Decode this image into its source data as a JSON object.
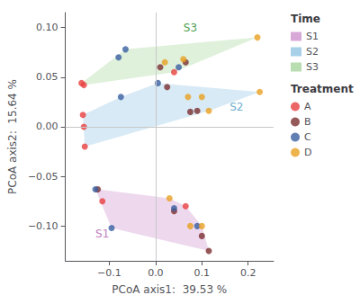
{
  "chart_data": {
    "type": "scatter",
    "title": "",
    "xlabel": "PCoA axis1:  39.53 %",
    "ylabel": "PCoA axis2:  15.64 %",
    "xlim": [
      -0.195,
      0.255
    ],
    "ylim": [
      -0.135,
      0.115
    ],
    "xticks": [
      {
        "value": -0.1,
        "label": "−0.1"
      },
      {
        "value": 0.0,
        "label": "0.0"
      },
      {
        "value": 0.1,
        "label": "0.1"
      },
      {
        "value": 0.2,
        "label": "0.2"
      }
    ],
    "yticks": [
      {
        "value": -0.1,
        "label": "−0.10"
      },
      {
        "value": -0.05,
        "label": "−0.05"
      },
      {
        "value": 0.0,
        "label": "0.00"
      },
      {
        "value": 0.05,
        "label": "0.05"
      },
      {
        "value": 0.1,
        "label": "0.10"
      }
    ],
    "grid": false,
    "legend": "right",
    "time_title": "Time",
    "treatment_title": "Treatment",
    "times": [
      {
        "name": "S1",
        "color": "#D8A8D8"
      },
      {
        "name": "S2",
        "color": "#A8D0E8"
      },
      {
        "name": "S3",
        "color": "#B8DDB0"
      }
    ],
    "treatments": [
      {
        "name": "A",
        "color": "#E84040"
      },
      {
        "name": "B",
        "color": "#7B3030"
      },
      {
        "name": "C",
        "color": "#3A5FA0"
      },
      {
        "name": "D",
        "color": "#E8A020"
      }
    ],
    "reference_lines": [
      {
        "axis": "x",
        "value": 0
      },
      {
        "axis": "y",
        "value": 0
      }
    ],
    "annotations": [
      {
        "text": "S1",
        "x": -0.115,
        "y": -0.108,
        "color": "#C080C0"
      },
      {
        "text": "S2",
        "x": 0.175,
        "y": 0.02,
        "color": "#70B0D0"
      },
      {
        "text": "S3",
        "x": 0.075,
        "y": 0.1,
        "color": "#50A050"
      }
    ],
    "points": [
      {
        "x": -0.16,
        "y": 0.044,
        "treatment": "A",
        "time": "S3"
      },
      {
        "x": -0.155,
        "y": 0.042,
        "treatment": "A",
        "time": "S3"
      },
      {
        "x": -0.157,
        "y": 0.012,
        "treatment": "A",
        "time": "S2"
      },
      {
        "x": -0.155,
        "y": 0.0,
        "treatment": "A",
        "time": "S2"
      },
      {
        "x": -0.153,
        "y": -0.02,
        "treatment": "A",
        "time": "S2"
      },
      {
        "x": -0.08,
        "y": 0.07,
        "treatment": "C",
        "time": "S3"
      },
      {
        "x": -0.065,
        "y": 0.078,
        "treatment": "C",
        "time": "S3"
      },
      {
        "x": -0.075,
        "y": 0.03,
        "treatment": "C",
        "time": "S2"
      },
      {
        "x": 0.005,
        "y": 0.044,
        "treatment": "C",
        "time": "S2"
      },
      {
        "x": 0.01,
        "y": 0.06,
        "treatment": "B",
        "time": "S3"
      },
      {
        "x": 0.02,
        "y": 0.065,
        "treatment": "D",
        "time": "S3"
      },
      {
        "x": 0.025,
        "y": 0.04,
        "treatment": "B",
        "time": "S2"
      },
      {
        "x": 0.04,
        "y": 0.055,
        "treatment": "A",
        "time": "S3"
      },
      {
        "x": 0.05,
        "y": 0.06,
        "treatment": "C",
        "time": "S3"
      },
      {
        "x": 0.06,
        "y": 0.068,
        "treatment": "D",
        "time": "S3"
      },
      {
        "x": 0.065,
        "y": 0.065,
        "treatment": "B",
        "time": "S3"
      },
      {
        "x": 0.07,
        "y": 0.03,
        "treatment": "D",
        "time": "S2"
      },
      {
        "x": 0.075,
        "y": 0.015,
        "treatment": "B",
        "time": "S2"
      },
      {
        "x": 0.09,
        "y": 0.016,
        "treatment": "B",
        "time": "S2"
      },
      {
        "x": 0.1,
        "y": 0.03,
        "treatment": "D",
        "time": "S2"
      },
      {
        "x": 0.115,
        "y": 0.016,
        "treatment": "D",
        "time": "S2"
      },
      {
        "x": 0.22,
        "y": 0.09,
        "treatment": "D",
        "time": "S3"
      },
      {
        "x": 0.225,
        "y": 0.035,
        "treatment": "D",
        "time": "S2"
      },
      {
        "x": -0.13,
        "y": -0.063,
        "treatment": "C",
        "time": "S1"
      },
      {
        "x": -0.125,
        "y": -0.063,
        "treatment": "B",
        "time": "S1"
      },
      {
        "x": -0.115,
        "y": -0.075,
        "treatment": "A",
        "time": "S1"
      },
      {
        "x": -0.095,
        "y": -0.102,
        "treatment": "C",
        "time": "S1"
      },
      {
        "x": 0.03,
        "y": -0.072,
        "treatment": "D",
        "time": "S1"
      },
      {
        "x": 0.04,
        "y": -0.082,
        "treatment": "C",
        "time": "S1"
      },
      {
        "x": 0.04,
        "y": -0.085,
        "treatment": "B",
        "time": "S1"
      },
      {
        "x": 0.065,
        "y": -0.08,
        "treatment": "A",
        "time": "S1"
      },
      {
        "x": 0.075,
        "y": -0.1,
        "treatment": "D",
        "time": "S1"
      },
      {
        "x": 0.09,
        "y": -0.1,
        "treatment": "C",
        "time": "S1"
      },
      {
        "x": 0.1,
        "y": -0.1,
        "treatment": "D",
        "time": "S1"
      },
      {
        "x": 0.1,
        "y": -0.11,
        "treatment": "B",
        "time": "S1"
      },
      {
        "x": 0.115,
        "y": -0.125,
        "treatment": "B",
        "time": "S1"
      }
    ]
  }
}
